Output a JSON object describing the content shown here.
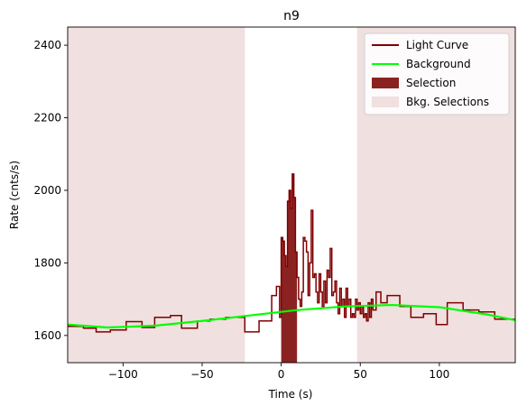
{
  "chart_data": {
    "type": "line",
    "title": "n9",
    "xlabel": "Time (s)",
    "ylabel": "Rate (cnts/s)",
    "xlim": [
      -135,
      148
    ],
    "ylim": [
      1525,
      2450
    ],
    "x_ticks": [
      -100,
      -50,
      0,
      50,
      100
    ],
    "x_tick_labels": [
      "−100",
      "−50",
      "0",
      "50",
      "100"
    ],
    "y_ticks": [
      1600,
      1800,
      2000,
      2200,
      2400
    ],
    "y_tick_labels": [
      "1600",
      "1800",
      "2000",
      "2200",
      "2400"
    ],
    "grid": false,
    "legend_position": "upper-right",
    "colors": {
      "light_curve": "#800000",
      "background": "#00ff00",
      "selection": "#8b2222",
      "bkg_selection": "#f0e0e0"
    },
    "legend": [
      {
        "label": "Light Curve",
        "kind": "line",
        "color": "#800000"
      },
      {
        "label": "Background",
        "kind": "line",
        "color": "#00ff00"
      },
      {
        "label": "Selection",
        "kind": "patch",
        "color": "#8b2222"
      },
      {
        "label": "Bkg. Selections",
        "kind": "patch",
        "color": "#f0e0e0"
      }
    ],
    "selection": [
      0,
      10
    ],
    "bkg_selections": [
      [
        -135,
        -23
      ],
      [
        48,
        148
      ]
    ],
    "background_curve": {
      "x": [
        -135,
        -110,
        -80,
        -50,
        -20,
        10,
        40,
        70,
        100,
        130,
        148
      ],
      "y": [
        1630,
        1622,
        1627,
        1640,
        1655,
        1670,
        1680,
        1684,
        1678,
        1658,
        1642
      ]
    },
    "light_curve": {
      "x": [
        -135,
        -125,
        -117,
        -108,
        -98,
        -88,
        -80,
        -70,
        -63,
        -53,
        -45,
        -35,
        -23,
        -14,
        -6,
        -3,
        -1,
        0,
        1,
        2,
        3,
        4,
        5,
        6,
        7,
        8,
        9,
        10,
        11,
        12,
        13,
        14,
        15,
        16,
        17,
        18,
        19,
        20,
        21,
        22,
        23,
        24,
        25,
        26,
        27,
        28,
        29,
        30,
        31,
        32,
        33,
        34,
        35,
        36,
        37,
        38,
        39,
        40,
        41,
        42,
        43,
        44,
        45,
        46,
        47,
        48,
        49,
        50,
        51,
        52,
        53,
        54,
        55,
        56,
        57,
        58,
        60,
        63,
        67,
        75,
        82,
        90,
        98,
        105,
        115,
        125,
        135,
        148
      ],
      "y": [
        1625,
        1620,
        1610,
        1615,
        1638,
        1622,
        1650,
        1655,
        1620,
        1640,
        1645,
        1650,
        1610,
        1640,
        1710,
        1735,
        1650,
        1870,
        1860,
        1820,
        1790,
        1970,
        2000,
        1950,
        2045,
        1980,
        1830,
        1760,
        1700,
        1680,
        1720,
        1870,
        1860,
        1830,
        1710,
        1800,
        1945,
        1760,
        1770,
        1720,
        1690,
        1770,
        1720,
        1680,
        1750,
        1690,
        1780,
        1760,
        1840,
        1710,
        1720,
        1750,
        1690,
        1660,
        1730,
        1680,
        1700,
        1650,
        1730,
        1680,
        1700,
        1650,
        1660,
        1650,
        1700,
        1670,
        1690,
        1660,
        1680,
        1650,
        1660,
        1640,
        1690,
        1650,
        1700,
        1670,
        1720,
        1690,
        1710,
        1680,
        1650,
        1660,
        1630,
        1690,
        1670,
        1665,
        1645,
        1640
      ]
    }
  }
}
